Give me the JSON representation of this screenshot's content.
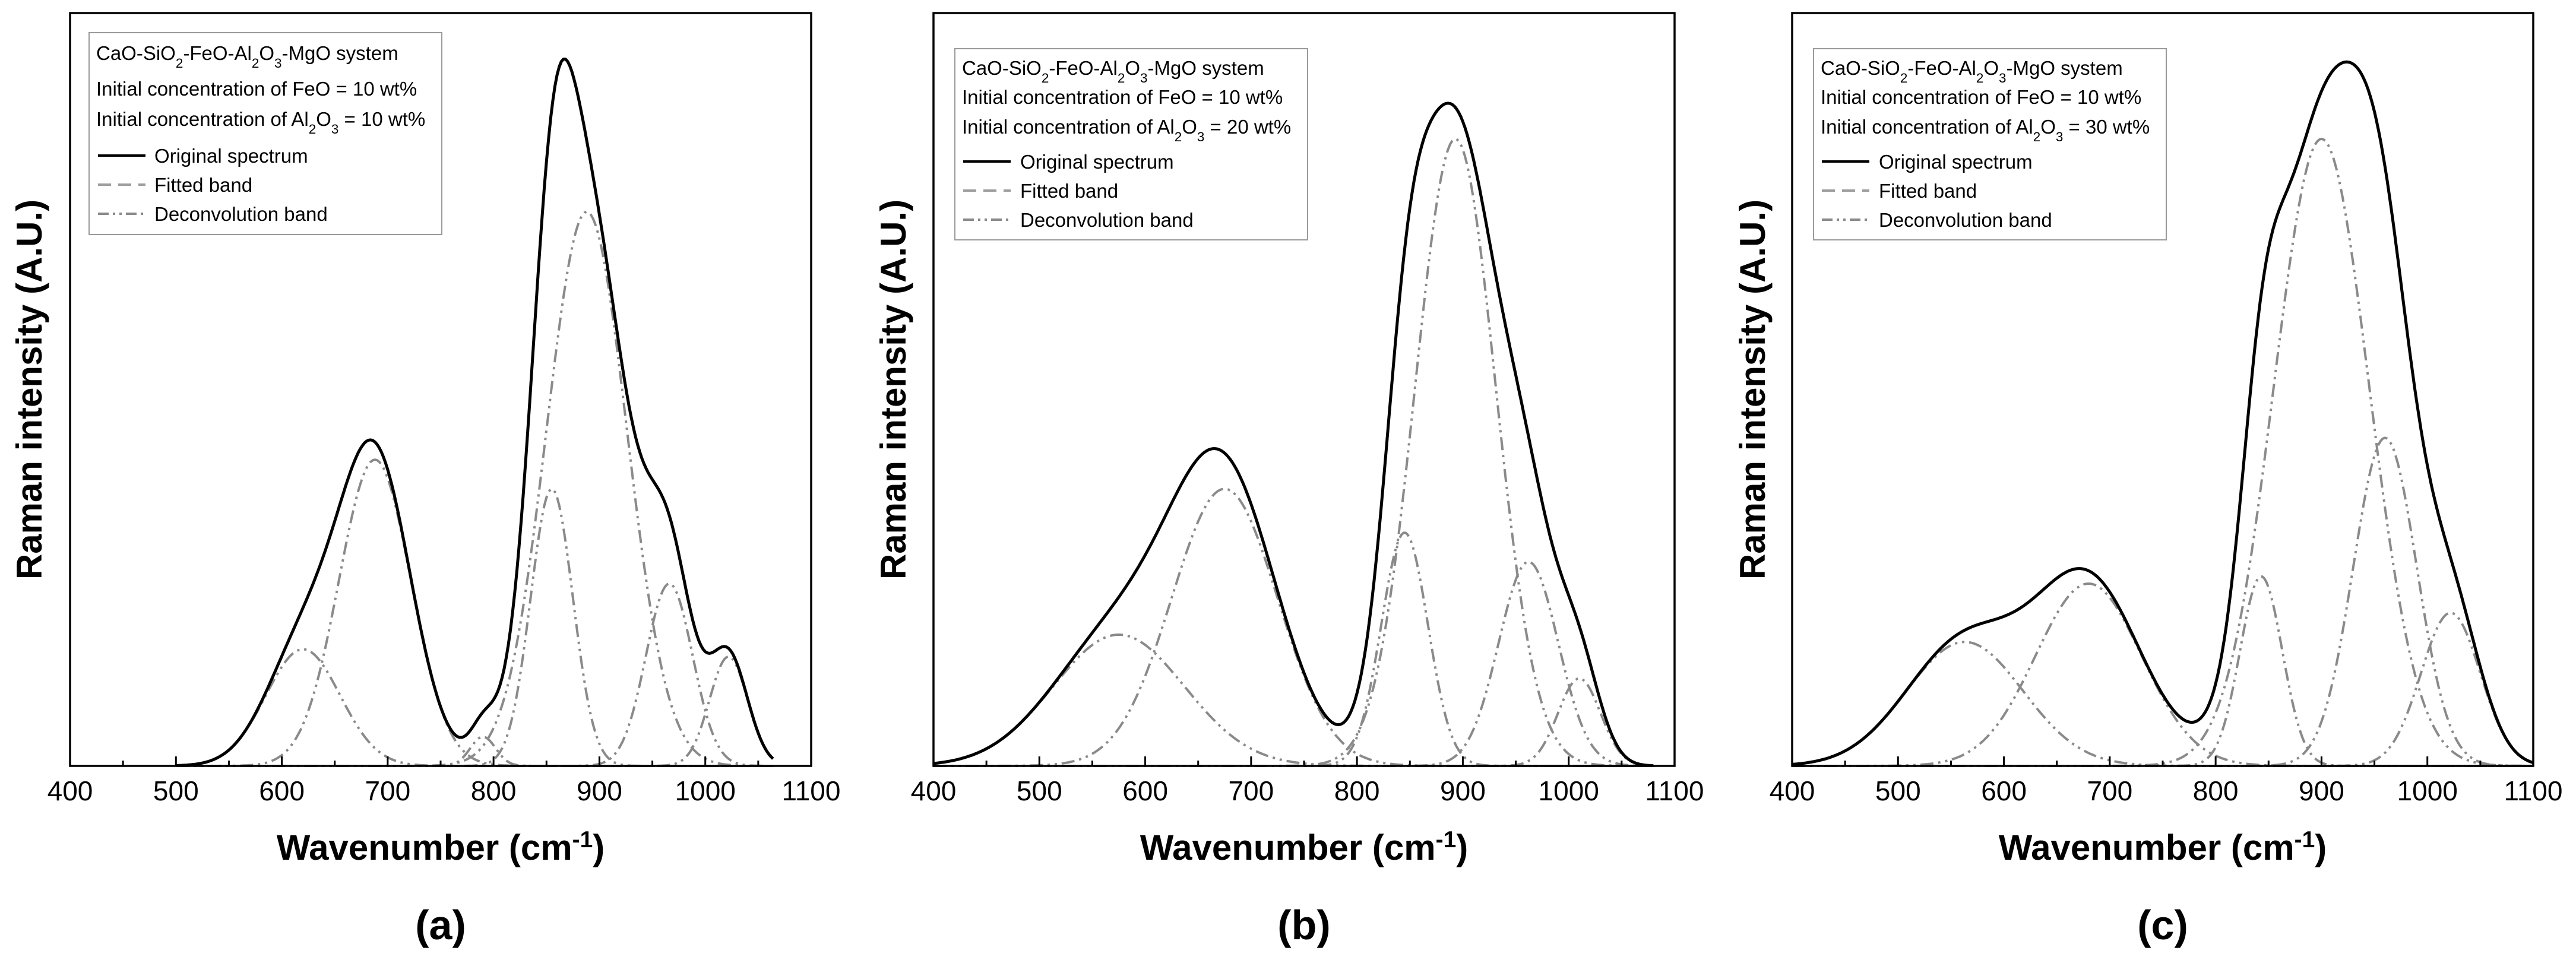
{
  "chart_data": [
    {
      "type": "line",
      "panel_label": "(a)",
      "xlabel": "Wavenumber (cm-1)",
      "ylabel": "Raman intensity (A.U.)",
      "xlim": [
        400,
        1100
      ],
      "xticks": [
        400,
        500,
        600,
        700,
        800,
        900,
        1000,
        1100
      ],
      "ylim": [
        0,
        1.0
      ],
      "legend": {
        "system": "CaO-SiO2-FeO-Al2O3-MgO system",
        "feo": "Initial concentration of FeO = 10 wt%",
        "al2o3": "Initial concentration of Al2O3 = 10 wt%",
        "entries": [
          "Original spectrum",
          "Fitted band",
          "Deconvolution band"
        ]
      },
      "x_range": [
        500,
        1065
      ],
      "bands": [
        {
          "center": 620,
          "amplitude": 0.16,
          "sigma": 35
        },
        {
          "center": 688,
          "amplitude": 0.42,
          "sigma": 34
        },
        {
          "center": 790,
          "amplitude": 0.04,
          "sigma": 12
        },
        {
          "center": 855,
          "amplitude": 0.38,
          "sigma": 20
        },
        {
          "center": 888,
          "amplitude": 0.76,
          "sigma": 38
        },
        {
          "center": 966,
          "amplitude": 0.25,
          "sigma": 22
        },
        {
          "center": 1022,
          "amplitude": 0.15,
          "sigma": 18
        }
      ],
      "series": [
        {
          "name": "Original spectrum",
          "style": "solid",
          "color": "#000000"
        },
        {
          "name": "Fitted band",
          "style": "dashed",
          "color": "#9e9e9e"
        },
        {
          "name": "Deconvolution band",
          "style": "dash-dot-dot",
          "color": "#8a8a8a"
        }
      ]
    },
    {
      "type": "line",
      "panel_label": "(b)",
      "xlabel": "Wavenumber (cm-1)",
      "ylabel": "Raman intensity (A.U.)",
      "xlim": [
        400,
        1100
      ],
      "xticks": [
        400,
        500,
        600,
        700,
        800,
        900,
        1000,
        1100
      ],
      "ylim": [
        0,
        1.0
      ],
      "legend": {
        "system": "CaO-SiO2-FeO-Al2O3-MgO system",
        "feo": "Initial concentration of FeO = 10 wt%",
        "al2o3": "Initial concentration of Al2O3 = 20 wt%",
        "entries": [
          "Original spectrum",
          "Fitted band",
          "Deconvolution band"
        ]
      },
      "x_range": [
        400,
        1080
      ],
      "bands": [
        {
          "center": 575,
          "amplitude": 0.18,
          "sigma": 62
        },
        {
          "center": 675,
          "amplitude": 0.38,
          "sigma": 50
        },
        {
          "center": 845,
          "amplitude": 0.32,
          "sigma": 22
        },
        {
          "center": 893,
          "amplitude": 0.86,
          "sigma": 38
        },
        {
          "center": 962,
          "amplitude": 0.28,
          "sigma": 28
        },
        {
          "center": 1010,
          "amplitude": 0.12,
          "sigma": 20
        }
      ],
      "series": [
        {
          "name": "Original spectrum",
          "style": "solid",
          "color": "#000000"
        },
        {
          "name": "Fitted band",
          "style": "dashed",
          "color": "#9e9e9e"
        },
        {
          "name": "Deconvolution band",
          "style": "dash-dot-dot",
          "color": "#8a8a8a"
        }
      ]
    },
    {
      "type": "line",
      "panel_label": "(c)",
      "xlabel": "Wavenumber (cm-1)",
      "ylabel": "Raman intensity (A.U.)",
      "xlim": [
        400,
        1100
      ],
      "xticks": [
        400,
        500,
        600,
        700,
        800,
        900,
        1000,
        1100
      ],
      "ylim": [
        0,
        1.0
      ],
      "legend": {
        "system": "CaO-SiO2-FeO-Al2O3-MgO system",
        "feo": "Initial concentration of FeO = 10 wt%",
        "al2o3": "Initial concentration of Al2O3 = 30 wt%",
        "entries": [
          "Original spectrum",
          "Fitted band",
          "Deconvolution band"
        ]
      },
      "x_range": [
        400,
        1100
      ],
      "bands": [
        {
          "center": 563,
          "amplitude": 0.17,
          "sigma": 55
        },
        {
          "center": 680,
          "amplitude": 0.25,
          "sigma": 50
        },
        {
          "center": 843,
          "amplitude": 0.26,
          "sigma": 20
        },
        {
          "center": 900,
          "amplitude": 0.86,
          "sigma": 45
        },
        {
          "center": 960,
          "amplitude": 0.45,
          "sigma": 30
        },
        {
          "center": 1022,
          "amplitude": 0.21,
          "sigma": 28
        }
      ],
      "series": [
        {
          "name": "Original spectrum",
          "style": "solid",
          "color": "#000000"
        },
        {
          "name": "Fitted band",
          "style": "dashed",
          "color": "#9e9e9e"
        },
        {
          "name": "Deconvolution band",
          "style": "dash-dot-dot",
          "color": "#8a8a8a"
        }
      ]
    }
  ]
}
